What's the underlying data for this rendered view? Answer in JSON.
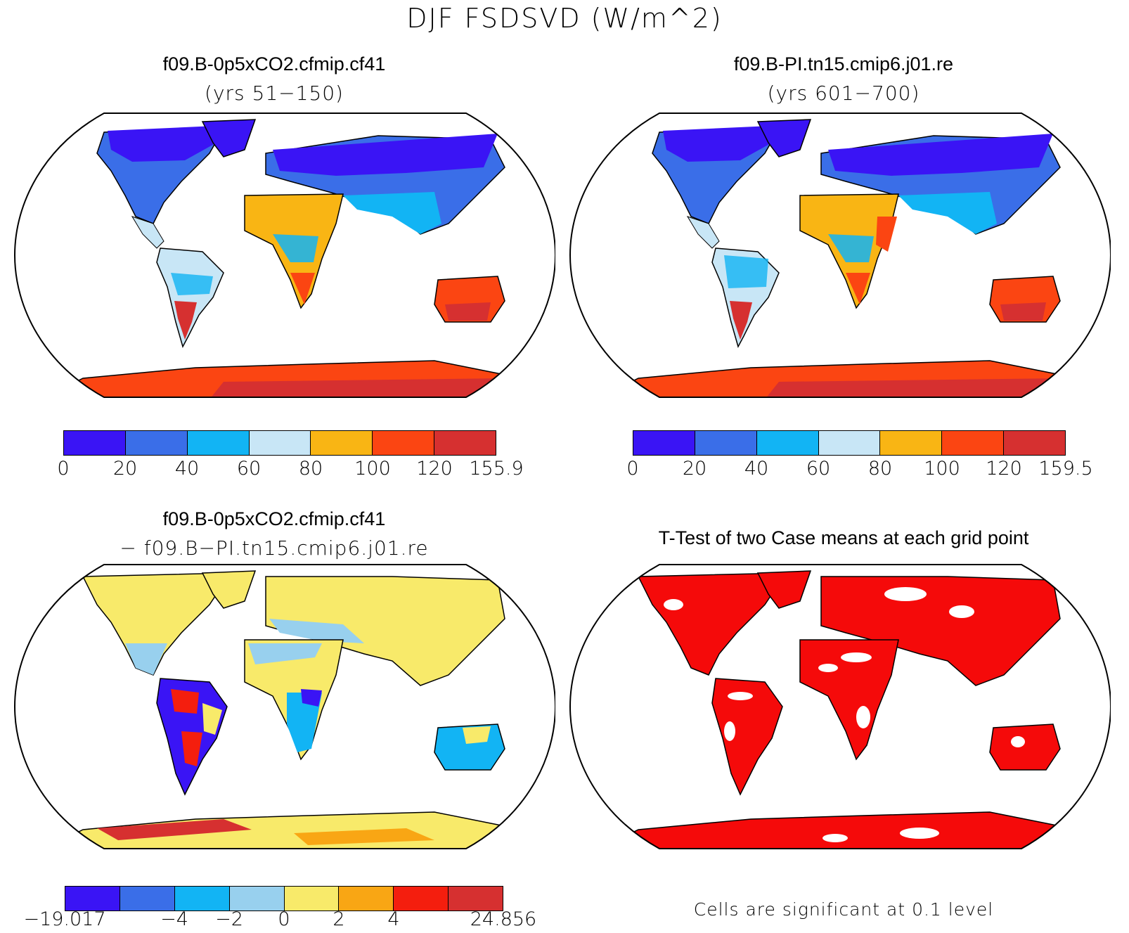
{
  "figure": {
    "title": "DJF FSDSVD (W/m^2)"
  },
  "panels": {
    "top_left": {
      "title": "f09.B-0p5xCO2.cfmip.cf41",
      "subtitle": "(yrs 51−150)"
    },
    "top_right": {
      "title": "f09.B-PI.tn15.cmip6.j01.re",
      "subtitle": "(yrs 601−700)"
    },
    "bottom_left": {
      "title": "f09.B-0p5xCO2.cfmip.cf41",
      "subtitle": "− f09.B−PI.tn15.cmip6.j01.re"
    },
    "bottom_right": {
      "title": "T-Test of two Case means at each grid point",
      "note": "Cells are significant at 0.1 level"
    }
  },
  "colorbars": {
    "top_left": {
      "colors": [
        "#3a14f5",
        "#3a6ee8",
        "#12b4f4",
        "#c8e6f6",
        "#f9b514",
        "#fb4512",
        "#d63030"
      ],
      "ticks": [
        "0",
        "20",
        "40",
        "60",
        "80",
        "100",
        "120",
        "155.9"
      ]
    },
    "top_right": {
      "colors": [
        "#3a14f5",
        "#3a6ee8",
        "#12b4f4",
        "#c8e6f6",
        "#f9b514",
        "#fb4512",
        "#d63030"
      ],
      "ticks": [
        "0",
        "20",
        "40",
        "60",
        "80",
        "100",
        "120",
        "159.5"
      ]
    },
    "bottom_left": {
      "colors": [
        "#3a14f5",
        "#3a6ee8",
        "#12b4f4",
        "#98d0ee",
        "#f8ea6a",
        "#f9a614",
        "#f41e0e",
        "#d63030"
      ],
      "ticks": [
        "−19.017",
        "",
        "−4",
        "−2",
        "0",
        "2",
        "4",
        "",
        "24.856"
      ]
    }
  },
  "colors": {
    "ocean": "#ffffff",
    "significant": "#f50a0a",
    "coast": "#000000"
  }
}
